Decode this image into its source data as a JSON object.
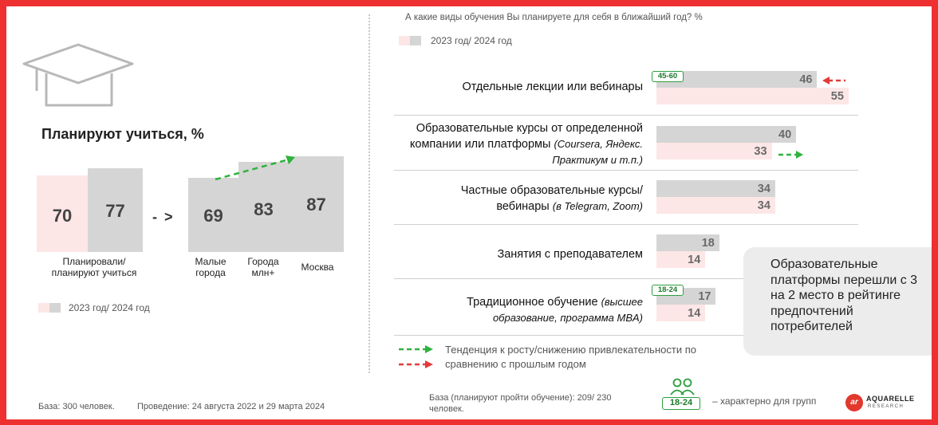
{
  "left": {
    "title": "Планируют учиться, %",
    "legend": "2023 год/ 2024 год",
    "arrow": "- >",
    "left_group_label": "Планировали/ планируют учиться",
    "colors": {
      "y2023": "#fde6e6",
      "y2024": "#d5d5d5",
      "up": "#2eb33e",
      "down": "#e23b3b"
    }
  },
  "right": {
    "question": "А какие виды обучения Вы планируете для себя в ближайший год? %",
    "legend": "2023 год/ 2024 год",
    "trend_note": "Тенденция к росту/снижению привлекательности по сравнению с прошлым годом"
  },
  "chart_data": [
    {
      "type": "bar",
      "title": "Планируют учиться, %",
      "categories": [
        "Планировали/ планируют учиться",
        "Малые города",
        "Города млн+",
        "Москва"
      ],
      "series": [
        {
          "name": "2023 год",
          "values": [
            70,
            null,
            null,
            null
          ]
        },
        {
          "name": "2024 год",
          "values": [
            77,
            69,
            83,
            87
          ]
        }
      ],
      "legend": "bottom-left",
      "grid": false
    },
    {
      "type": "bar",
      "orientation": "horizontal",
      "title": "А какие виды обучения Вы планируете для себя в ближайший год? %",
      "categories": [
        {
          "main": "Отдельные лекции или вебинары",
          "note": ""
        },
        {
          "main": "Образовательные курсы от определенной компании или платформы",
          "note": "(Coursera, Яндекс. Практикум и т.п.)"
        },
        {
          "main": "Частные образовательные курсы/вебинары",
          "note": "(в Telegram, Zoom)"
        },
        {
          "main": "Занятия с преподавателем",
          "note": ""
        },
        {
          "main": "Традиционное обучение",
          "note": "(высшее образование, программа MBA)"
        }
      ],
      "series": [
        {
          "name": "2024 год",
          "values": [
            46,
            40,
            34,
            18,
            17
          ]
        },
        {
          "name": "2023 год",
          "values": [
            55,
            33,
            34,
            14,
            14
          ]
        }
      ],
      "badges": [
        "45-60",
        "",
        "",
        "",
        "18-24"
      ],
      "trend_arrows": [
        "down",
        "up",
        "",
        "",
        ""
      ],
      "legend": "top-left",
      "grid": false
    }
  ],
  "callout": "Образовательные платформы перешли с 3 на 2 место в рейтинге предпочтений потребителей",
  "footer": {
    "base_left": "База: 300 человек.",
    "dates": "Проведение: 24 августа 2022 и 29 марта 2024",
    "base_right": "База (планируют пройти обучение): 209/ 230 человек.",
    "group_badge": "18-24",
    "group_text": "– характерно для групп",
    "brand": "AQUARELLE",
    "brand_sub": "RESEARCH",
    "brand_icon": "ar"
  }
}
